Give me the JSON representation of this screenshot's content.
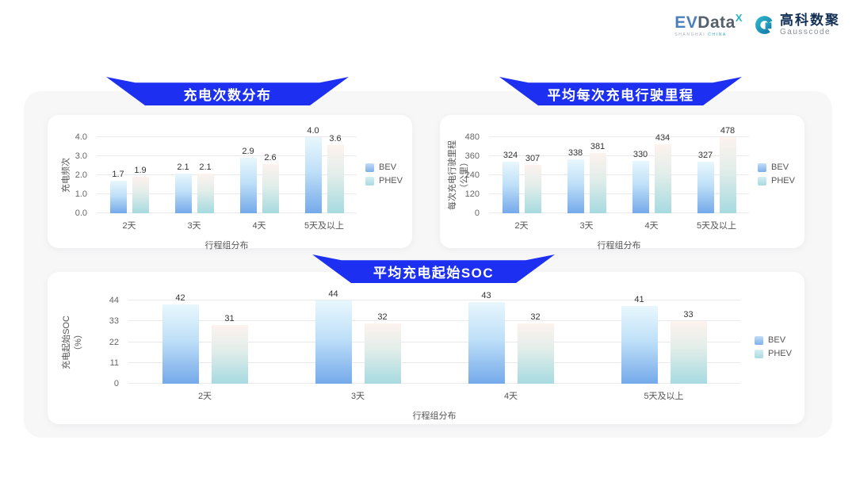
{
  "header": {
    "evdata": {
      "ev": "EV",
      "data": "Data",
      "sup": "X",
      "sub_left": "SHANGHAI",
      "sub_right": "CHINA"
    },
    "gausscode": {
      "icon": "gausscode-g-mark",
      "cn": "高科数聚",
      "en": "Gausscode"
    }
  },
  "colors": {
    "banner_blue": "#1d2ff0",
    "bev_top": "#e8f7fd",
    "bev_bottom": "#74a9ea",
    "phev_top": "#fdf2ee",
    "phev_bottom": "#a6dae0",
    "panel_bg": "#f7f7f8",
    "grid_line": "#e9e9ec",
    "brand_teal": "#2ab3c8"
  },
  "chart_data": [
    {
      "id": "chart-frequency",
      "type": "bar",
      "title": "充电次数分布",
      "ylabel": "充电频次",
      "ylabel_unit": "",
      "xlabel": "行程组分布",
      "categories": [
        "2天",
        "3天",
        "4天",
        "5天及以上"
      ],
      "yticks": [
        "0.0",
        "1.0",
        "2.0",
        "3.0",
        "4.0"
      ],
      "ymax": 4.0,
      "grid": true,
      "legend_position": "right",
      "series": [
        {
          "name": "BEV",
          "values": [
            1.7,
            2.1,
            2.9,
            4.0
          ],
          "labels": [
            "1.7",
            "2.1",
            "2.9",
            "4.0"
          ]
        },
        {
          "name": "PHEV",
          "values": [
            1.9,
            2.1,
            2.6,
            3.6
          ],
          "labels": [
            "1.9",
            "2.1",
            "2.6",
            "3.6"
          ]
        }
      ]
    },
    {
      "id": "chart-mileage",
      "type": "bar",
      "title": "平均每次充电行驶里程",
      "ylabel": "每次充电行驶里程",
      "ylabel_unit": "（公里）",
      "xlabel": "行程组分布",
      "categories": [
        "2天",
        "3天",
        "4天",
        "5天及以上"
      ],
      "yticks": [
        "0",
        "120",
        "240",
        "360",
        "480"
      ],
      "ymax": 480,
      "grid": true,
      "legend_position": "right",
      "series": [
        {
          "name": "BEV",
          "values": [
            324,
            338,
            330,
            327
          ],
          "labels": [
            "324",
            "338",
            "330",
            "327"
          ]
        },
        {
          "name": "PHEV",
          "values": [
            307,
            381,
            434,
            478
          ],
          "labels": [
            "307",
            "381",
            "434",
            "478"
          ]
        }
      ]
    },
    {
      "id": "chart-soc",
      "type": "bar",
      "title": "平均充电起始SOC",
      "ylabel": "充电起始SOC",
      "ylabel_unit": "（%）",
      "xlabel": "行程组分布",
      "categories": [
        "2天",
        "3天",
        "4天",
        "5天及以上"
      ],
      "yticks": [
        "0",
        "11",
        "22",
        "33",
        "44"
      ],
      "ymax": 44,
      "grid": true,
      "legend_position": "right",
      "series": [
        {
          "name": "BEV",
          "values": [
            42,
            44,
            43,
            41
          ],
          "labels": [
            "42",
            "44",
            "43",
            "41"
          ]
        },
        {
          "name": "PHEV",
          "values": [
            31,
            32,
            32,
            33
          ],
          "labels": [
            "31",
            "32",
            "32",
            "33"
          ]
        }
      ]
    }
  ]
}
